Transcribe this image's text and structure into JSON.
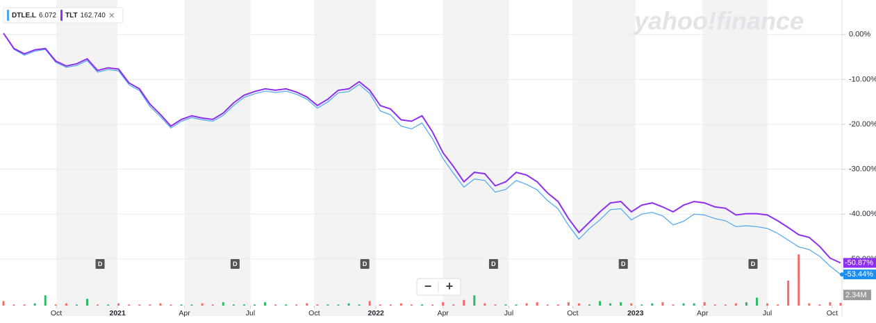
{
  "chart_data": {
    "type": "line",
    "watermark": "yahoo!finance",
    "controls": [
      "−",
      "+"
    ],
    "x": [
      0,
      1,
      2,
      3,
      4,
      5,
      6,
      7,
      8,
      9,
      10,
      11,
      12,
      13,
      14,
      15,
      16,
      17,
      18,
      19,
      20,
      21,
      22,
      23,
      24,
      25,
      26,
      27,
      28,
      29,
      30,
      31,
      32,
      33,
      34,
      35,
      36,
      37,
      38,
      39,
      40,
      41,
      42,
      43,
      44,
      45,
      46,
      47,
      48,
      49,
      50,
      51,
      52,
      53,
      54,
      55,
      56,
      57,
      58,
      59,
      60,
      61,
      62,
      63,
      64,
      65,
      66,
      67,
      68,
      69,
      70,
      71,
      72,
      73,
      74,
      75,
      76,
      77,
      78,
      79,
      80
    ],
    "xlim": [
      0,
      80
    ],
    "xticks": [
      {
        "value": 5.05,
        "label": "Oct"
      },
      {
        "value": 10.9,
        "label": "2021"
      },
      {
        "value": 17.3,
        "label": "Apr"
      },
      {
        "value": 23.6,
        "label": "Jul"
      },
      {
        "value": 29.7,
        "label": "Oct"
      },
      {
        "value": 35.6,
        "label": "2022"
      },
      {
        "value": 42.0,
        "label": "Apr"
      },
      {
        "value": 48.3,
        "label": "Jul"
      },
      {
        "value": 54.4,
        "label": "Oct"
      },
      {
        "value": 60.4,
        "label": "2023"
      },
      {
        "value": 66.8,
        "label": "Apr"
      },
      {
        "value": 73.0,
        "label": "Jul"
      },
      {
        "value": 79.2,
        "label": "Oct"
      }
    ],
    "ylim": [
      -54.2,
      7.7
    ],
    "yticks": [
      {
        "value": 0,
        "label": "0.00%"
      },
      {
        "value": -10,
        "label": "-10.00%"
      },
      {
        "value": -20,
        "label": "-20.00%"
      },
      {
        "value": -30,
        "label": "-30.00%"
      },
      {
        "value": -40,
        "label": "-40.00%"
      },
      {
        "value": -50,
        "label": "-50.00%"
      }
    ],
    "grid": true,
    "series": [
      {
        "name": "DTLE.L",
        "color": "#4ba6f0",
        "last": {
          "value": 6.072,
          "label": "6.072"
        },
        "end_label": "-53.44%",
        "end_color": "#1a8ef5",
        "values": [
          0.3,
          -3.3,
          -4.6,
          -3.7,
          -3.3,
          -6.2,
          -7.3,
          -6.9,
          -5.8,
          -8.4,
          -7.8,
          -8.1,
          -11.2,
          -12.5,
          -16.0,
          -18.3,
          -20.8,
          -19.3,
          -18.5,
          -19.0,
          -19.3,
          -18.0,
          -15.8,
          -14.0,
          -13.2,
          -12.6,
          -12.9,
          -12.6,
          -13.3,
          -14.4,
          -16.4,
          -15.0,
          -13.0,
          -12.7,
          -11.1,
          -13.1,
          -17.0,
          -17.9,
          -20.4,
          -21.0,
          -19.7,
          -23.2,
          -27.6,
          -30.9,
          -34.0,
          -32.2,
          -32.5,
          -35.1,
          -34.5,
          -32.5,
          -33.4,
          -34.6,
          -37.0,
          -38.8,
          -42.5,
          -45.6,
          -43.2,
          -41.3,
          -39.0,
          -38.8,
          -41.3,
          -40.0,
          -39.6,
          -40.4,
          -42.4,
          -41.6,
          -40.0,
          -40.2,
          -41.0,
          -41.5,
          -42.8,
          -42.6,
          -42.8,
          -43.2,
          -44.3,
          -45.8,
          -47.3,
          -47.9,
          -49.4,
          -51.6,
          -53.44
        ]
      },
      {
        "name": "TLT",
        "color": "#8c2ff0",
        "last": {
          "value": 162.74,
          "label": "162.740"
        },
        "end_label": "-50.87%",
        "end_color": "#8c2ff0",
        "values": [
          0.3,
          -3.1,
          -4.3,
          -3.4,
          -3.1,
          -5.9,
          -7.0,
          -6.5,
          -5.4,
          -8.0,
          -7.4,
          -7.7,
          -10.8,
          -12.1,
          -15.5,
          -17.8,
          -20.4,
          -18.9,
          -18.1,
          -18.6,
          -18.9,
          -17.5,
          -15.2,
          -13.5,
          -12.7,
          -12.1,
          -12.4,
          -12.1,
          -12.8,
          -13.9,
          -15.8,
          -14.4,
          -12.4,
          -12.1,
          -10.5,
          -12.4,
          -15.8,
          -16.6,
          -19.0,
          -19.3,
          -18.1,
          -21.7,
          -26.3,
          -29.4,
          -32.8,
          -30.7,
          -31.0,
          -33.7,
          -32.8,
          -30.7,
          -31.3,
          -32.8,
          -35.3,
          -37.2,
          -41.0,
          -44.1,
          -41.8,
          -39.5,
          -37.5,
          -37.2,
          -39.5,
          -38.0,
          -37.5,
          -38.4,
          -39.5,
          -38.0,
          -37.2,
          -37.5,
          -38.4,
          -38.7,
          -40.2,
          -39.9,
          -39.9,
          -40.2,
          -41.5,
          -43.0,
          -44.6,
          -45.2,
          -47.2,
          -49.8,
          -50.87
        ]
      }
    ],
    "events": [
      {
        "x": 9.2,
        "label": "D"
      },
      {
        "x": 22.1,
        "label": "D"
      },
      {
        "x": 34.5,
        "label": "D"
      },
      {
        "x": 46.8,
        "label": "D"
      },
      {
        "x": 59.2,
        "label": "D"
      },
      {
        "x": 71.6,
        "label": "D"
      }
    ],
    "volume": {
      "vlim": [
        0,
        50
      ],
      "last_label": "2.34M",
      "up_color": "#2fba6a",
      "down_color": "#f36a6a",
      "values": [
        4,
        1,
        1,
        2,
        9,
        1,
        2,
        1,
        6,
        1,
        1,
        2,
        1,
        1,
        1,
        2,
        1,
        1,
        1,
        2,
        1,
        3,
        1,
        1,
        1,
        3,
        1,
        1,
        1,
        2,
        1,
        1,
        1,
        2,
        1,
        4,
        1,
        1,
        2,
        1,
        1,
        1,
        3,
        1,
        5,
        9,
        2,
        1,
        1,
        1,
        2,
        3,
        1,
        1,
        3,
        2,
        1,
        4,
        2,
        3,
        2,
        1,
        2,
        3,
        1,
        2,
        2,
        3,
        1,
        1,
        2,
        3,
        7,
        2,
        1,
        22,
        45,
        2,
        1,
        3,
        2.34
      ]
    }
  }
}
